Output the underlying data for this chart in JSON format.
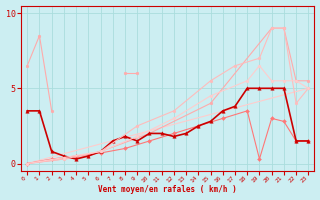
{
  "xlabel": "Vent moyen/en rafales ( km/h )",
  "bg_color": "#cceef2",
  "grid_color": "#aadddd",
  "xlim": [
    -0.5,
    23.5
  ],
  "ylim": [
    -0.5,
    10.5
  ],
  "yticks": [
    0,
    5,
    10
  ],
  "xticks": [
    0,
    1,
    2,
    3,
    4,
    5,
    6,
    7,
    8,
    9,
    10,
    11,
    12,
    13,
    14,
    15,
    16,
    17,
    18,
    19,
    20,
    21,
    22,
    23
  ],
  "series": [
    {
      "x": [
        0,
        1,
        2
      ],
      "y": [
        6.5,
        8.5,
        3.5
      ],
      "color": "#ffaaaa",
      "lw": 0.8,
      "marker": "o",
      "ms": 2.0
    },
    {
      "x": [
        8,
        9
      ],
      "y": [
        6.0,
        6.0
      ],
      "color": "#ffaaaa",
      "lw": 0.8,
      "marker": "o",
      "ms": 2.0
    },
    {
      "x": [
        0,
        23
      ],
      "y": [
        0,
        5.0
      ],
      "color": "#ffcccc",
      "lw": 0.8,
      "marker": null,
      "ms": 0
    },
    {
      "x": [
        0,
        5,
        10,
        15,
        20,
        21,
        22,
        23
      ],
      "y": [
        0,
        0.5,
        2.0,
        4.0,
        9.0,
        9.0,
        5.5,
        5.5
      ],
      "color": "#ffaaaa",
      "lw": 0.8,
      "marker": "o",
      "ms": 2.0
    },
    {
      "x": [
        0,
        2,
        4,
        6,
        8,
        10,
        12,
        14,
        16,
        18,
        19,
        20,
        21,
        22,
        23
      ],
      "y": [
        0,
        0.3,
        0.5,
        0.7,
        1.0,
        1.5,
        2.0,
        2.5,
        3.0,
        3.5,
        0.3,
        3.0,
        2.8,
        1.5,
        1.5
      ],
      "color": "#ff7777",
      "lw": 0.8,
      "marker": "D",
      "ms": 2.0
    },
    {
      "x": [
        0,
        1,
        2,
        3,
        4,
        5,
        6,
        7,
        8,
        9,
        10,
        11,
        12,
        13,
        14,
        15,
        16,
        17,
        18,
        19,
        20,
        21,
        22,
        23
      ],
      "y": [
        3.5,
        3.5,
        0.8,
        0.5,
        0.3,
        0.5,
        0.8,
        1.5,
        1.8,
        1.5,
        2.0,
        2.0,
        1.8,
        2.0,
        2.5,
        2.8,
        3.5,
        3.8,
        5.0,
        5.0,
        5.0,
        5.0,
        1.5,
        1.5
      ],
      "color": "#cc0000",
      "lw": 1.2,
      "marker": "^",
      "ms": 2.5
    },
    {
      "x": [
        0,
        3,
        6,
        9,
        12,
        15,
        17,
        19,
        20,
        21,
        22,
        23
      ],
      "y": [
        0,
        0.3,
        0.8,
        2.5,
        3.5,
        5.5,
        6.5,
        7.0,
        9.0,
        9.0,
        4.0,
        5.0
      ],
      "color": "#ffbbbb",
      "lw": 0.8,
      "marker": "o",
      "ms": 2.0
    },
    {
      "x": [
        0,
        3,
        6,
        9,
        12,
        15,
        18,
        19,
        20,
        21,
        22,
        23
      ],
      "y": [
        0,
        0.4,
        0.8,
        1.8,
        3.0,
        4.5,
        5.5,
        6.5,
        5.5,
        5.5,
        5.5,
        5.0
      ],
      "color": "#ffcccc",
      "lw": 0.8,
      "marker": "o",
      "ms": 2.0
    }
  ]
}
